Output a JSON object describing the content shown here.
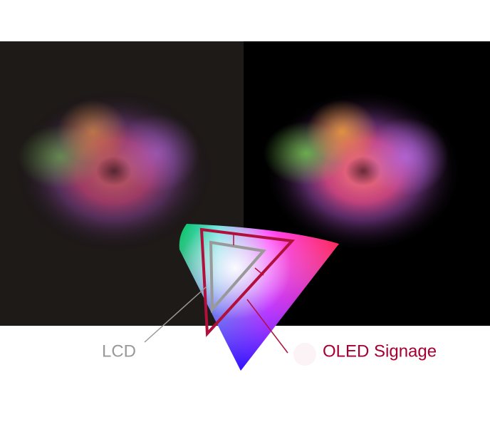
{
  "labels": {
    "lcd": "LCD",
    "oled": "OLED Signage"
  }
}
